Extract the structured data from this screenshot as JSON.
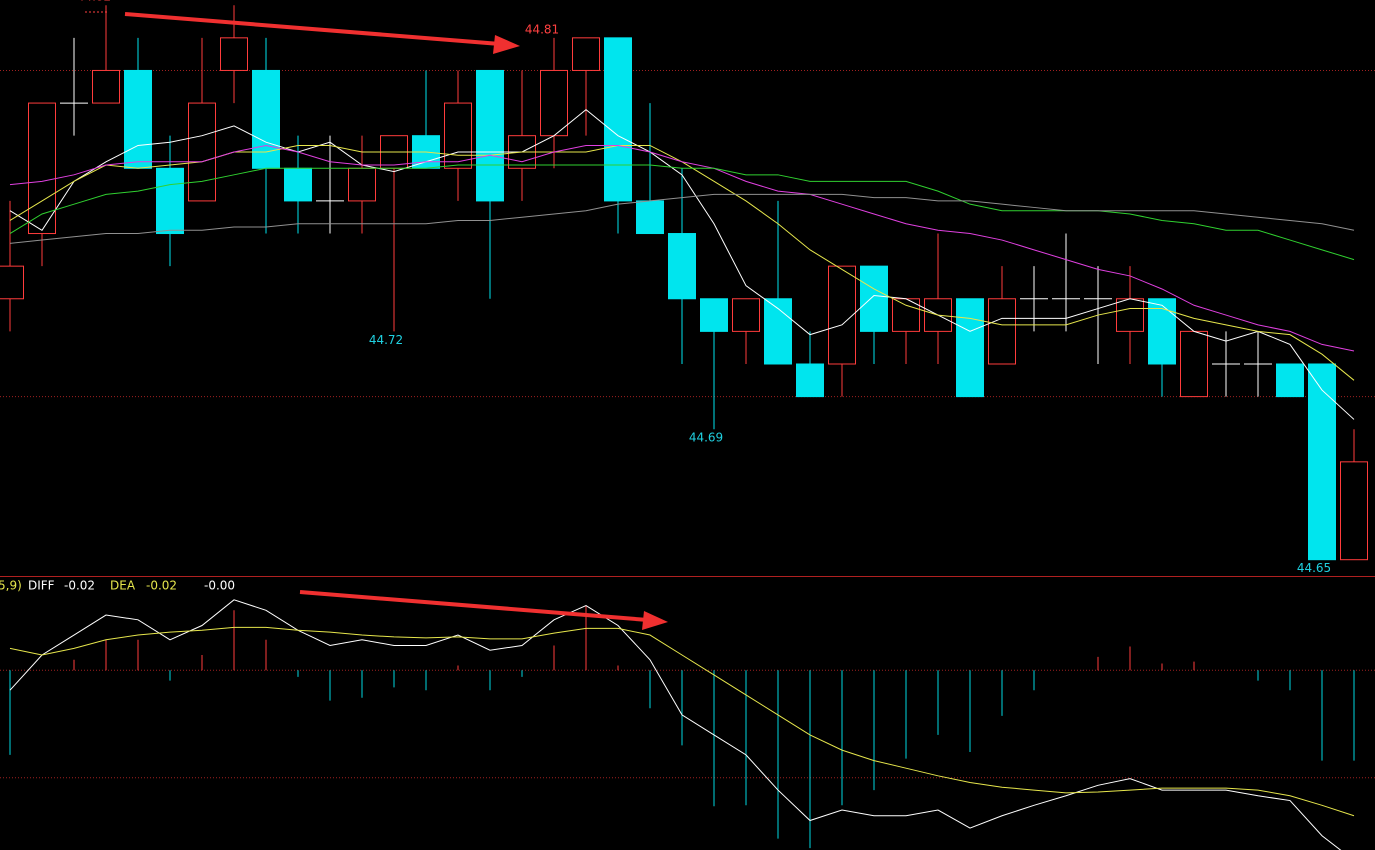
{
  "chart_data": [
    {
      "type": "candlestick",
      "ylim": [
        44.645,
        44.8216
      ],
      "hlines": [
        44.8,
        44.7
      ],
      "up_color": "#ff3c3c",
      "down_color": "#00e5ee",
      "doji_color": "#ffffff",
      "open": [
        44.73,
        44.75,
        44.79,
        44.79,
        44.8,
        44.77,
        44.76,
        44.8,
        44.8,
        44.77,
        44.76,
        44.76,
        44.77,
        44.78,
        44.77,
        44.8,
        44.77,
        44.78,
        44.8,
        44.81,
        44.76,
        44.75,
        44.73,
        44.72,
        44.73,
        44.71,
        44.71,
        44.74,
        44.72,
        44.72,
        44.73,
        44.71,
        44.73,
        44.73,
        44.73,
        44.72,
        44.73,
        44.7,
        44.71,
        44.71,
        44.71,
        44.71,
        44.65
      ],
      "high": [
        44.76,
        44.79,
        44.81,
        44.82,
        44.81,
        44.78,
        44.81,
        44.82,
        44.81,
        44.78,
        44.78,
        44.78,
        44.78,
        44.8,
        44.8,
        44.8,
        44.8,
        44.81,
        44.81,
        44.81,
        44.79,
        44.77,
        44.73,
        44.73,
        44.76,
        44.72,
        44.74,
        44.74,
        44.73,
        44.75,
        44.73,
        44.74,
        44.74,
        44.75,
        44.74,
        44.74,
        44.73,
        44.72,
        44.72,
        44.72,
        44.71,
        44.71,
        44.69
      ],
      "low": [
        44.72,
        44.74,
        44.78,
        44.79,
        44.77,
        44.74,
        44.76,
        44.79,
        44.75,
        44.75,
        44.75,
        44.75,
        44.72,
        44.77,
        44.76,
        44.73,
        44.76,
        44.77,
        44.78,
        44.75,
        44.75,
        44.71,
        44.69,
        44.71,
        44.71,
        44.7,
        44.7,
        44.71,
        44.71,
        44.71,
        44.7,
        44.71,
        44.72,
        44.72,
        44.71,
        44.71,
        44.7,
        44.7,
        44.7,
        44.7,
        44.7,
        44.65,
        44.65
      ],
      "close": [
        44.74,
        44.79,
        44.79,
        44.8,
        44.77,
        44.75,
        44.79,
        44.81,
        44.77,
        44.76,
        44.76,
        44.77,
        44.78,
        44.77,
        44.79,
        44.76,
        44.78,
        44.8,
        44.81,
        44.76,
        44.75,
        44.73,
        44.72,
        44.73,
        44.71,
        44.7,
        44.74,
        44.72,
        44.73,
        44.73,
        44.7,
        44.73,
        44.73,
        44.73,
        44.73,
        44.73,
        44.71,
        44.72,
        44.71,
        44.71,
        44.7,
        44.65,
        44.68
      ],
      "labeled_highs": [
        3,
        17
      ],
      "labeled_lows": [
        12,
        22,
        41
      ],
      "series": [
        {
          "color": "#ffffff",
          "values": [
            44.757,
            44.751,
            44.766,
            44.772,
            44.777,
            44.778,
            44.78,
            44.783,
            44.778,
            44.775,
            44.778,
            44.771,
            44.769,
            44.772,
            44.775,
            44.775,
            44.775,
            44.78,
            44.788,
            44.78,
            44.775,
            44.768,
            44.753,
            44.734,
            44.727,
            44.719,
            44.722,
            44.731,
            44.73,
            44.725,
            44.72,
            44.724,
            44.724,
            44.724,
            44.727,
            44.73,
            44.728,
            44.72,
            44.717,
            44.72,
            44.716,
            44.702,
            44.693
          ]
        },
        {
          "color": "#e6e64c",
          "values": [
            44.754,
            44.76,
            44.766,
            44.771,
            44.77,
            44.771,
            44.772,
            44.775,
            44.775,
            44.777,
            44.777,
            44.775,
            44.775,
            44.775,
            44.774,
            44.774,
            44.775,
            44.775,
            44.775,
            44.777,
            44.777,
            44.772,
            44.766,
            44.76,
            44.753,
            44.745,
            44.739,
            44.733,
            44.728,
            44.725,
            44.724,
            44.722,
            44.722,
            44.722,
            44.725,
            44.727,
            44.727,
            44.724,
            44.722,
            44.72,
            44.719,
            44.713,
            44.705
          ]
        },
        {
          "color": "#e040e0",
          "values": [
            44.765,
            44.766,
            44.768,
            44.771,
            44.772,
            44.772,
            44.772,
            44.775,
            44.777,
            44.775,
            44.772,
            44.771,
            44.771,
            44.772,
            44.772,
            44.774,
            44.772,
            44.775,
            44.777,
            44.777,
            44.775,
            44.772,
            44.77,
            44.766,
            44.763,
            44.762,
            44.759,
            44.756,
            44.753,
            44.751,
            44.75,
            44.748,
            44.745,
            44.742,
            44.739,
            44.737,
            44.733,
            44.728,
            44.725,
            44.722,
            44.72,
            44.716,
            44.714
          ]
        },
        {
          "color": "#30d030",
          "values": [
            44.75,
            44.756,
            44.759,
            44.762,
            44.763,
            44.765,
            44.766,
            44.768,
            44.77,
            44.77,
            44.77,
            44.77,
            44.77,
            44.77,
            44.771,
            44.771,
            44.771,
            44.771,
            44.771,
            44.771,
            44.771,
            44.77,
            44.77,
            44.768,
            44.768,
            44.766,
            44.766,
            44.766,
            44.766,
            44.763,
            44.759,
            44.757,
            44.757,
            44.757,
            44.757,
            44.756,
            44.754,
            44.753,
            44.751,
            44.751,
            44.748,
            44.745,
            44.742
          ]
        },
        {
          "color": "#909090",
          "values": [
            44.747,
            44.748,
            44.749,
            44.75,
            44.75,
            44.751,
            44.751,
            44.752,
            44.752,
            44.753,
            44.753,
            44.753,
            44.753,
            44.753,
            44.754,
            44.754,
            44.755,
            44.756,
            44.757,
            44.759,
            44.76,
            44.761,
            44.762,
            44.762,
            44.762,
            44.762,
            44.762,
            44.761,
            44.761,
            44.76,
            44.76,
            44.759,
            44.758,
            44.757,
            44.757,
            44.757,
            44.757,
            44.757,
            44.756,
            44.755,
            44.754,
            44.753,
            44.751
          ]
        }
      ]
    },
    {
      "type": "macd",
      "header": [
        "5,9)",
        "DIFF",
        "-0.02",
        "DEA",
        "-0.02",
        "-0.00"
      ],
      "ylim": [
        -0.0189,
        0.0098
      ],
      "hlines": [
        0,
        -0.0113
      ],
      "up_color": "#ff3c3c",
      "down_color": "#00d8e0",
      "hist": [
        -0.0089,
        0,
        0.0011,
        0.0032,
        0.0032,
        -0.0011,
        0.0016,
        0.0063,
        0.0032,
        -0.0007,
        -0.0032,
        -0.0029,
        -0.0018,
        -0.0021,
        0.0005,
        -0.0021,
        -0.0007,
        0.0026,
        0.0068,
        0.0005,
        -0.004,
        -0.0079,
        -0.0143,
        -0.0142,
        -0.0177,
        -0.0187,
        -0.0142,
        -0.0126,
        -0.0093,
        -0.0068,
        -0.0086,
        -0.0048,
        -0.0021,
        0,
        0.0014,
        0.0025,
        0.0007,
        0.0009,
        0,
        -0.0011,
        -0.0021,
        -0.0095,
        -0.0095
      ],
      "series": [
        {
          "name": "DIFF",
          "color": "#ffffff",
          "values": [
            -0.0021,
            0.0016,
            0.0037,
            0.0058,
            0.0053,
            0.0032,
            0.0047,
            0.0074,
            0.0063,
            0.0042,
            0.0026,
            0.0032,
            0.0026,
            0.0026,
            0.0037,
            0.0021,
            0.0026,
            0.0053,
            0.0068,
            0.0047,
            0.0011,
            -0.0047,
            -0.0068,
            -0.0089,
            -0.0126,
            -0.0158,
            -0.0147,
            -0.0153,
            -0.0153,
            -0.0147,
            -0.0166,
            -0.0153,
            -0.0142,
            -0.0132,
            -0.0121,
            -0.0114,
            -0.0126,
            -0.0126,
            -0.0126,
            -0.0132,
            -0.0137,
            -0.0174,
            -0.02
          ]
        },
        {
          "name": "DEA",
          "color": "#e6e64c",
          "values": [
            0.0023,
            0.0016,
            0.0023,
            0.0032,
            0.0037,
            0.004,
            0.0042,
            0.0045,
            0.0045,
            0.0042,
            0.004,
            0.0037,
            0.0035,
            0.0034,
            0.0035,
            0.0033,
            0.0033,
            0.0039,
            0.0044,
            0.0044,
            0.0037,
            0.0016,
            -0.0005,
            -0.0026,
            -0.0047,
            -0.0068,
            -0.0084,
            -0.0095,
            -0.0103,
            -0.0111,
            -0.0118,
            -0.0123,
            -0.0126,
            -0.0129,
            -0.0128,
            -0.0126,
            -0.0124,
            -0.0124,
            -0.0124,
            -0.0126,
            -0.0132,
            -0.0142,
            -0.0153
          ]
        }
      ]
    }
  ]
}
